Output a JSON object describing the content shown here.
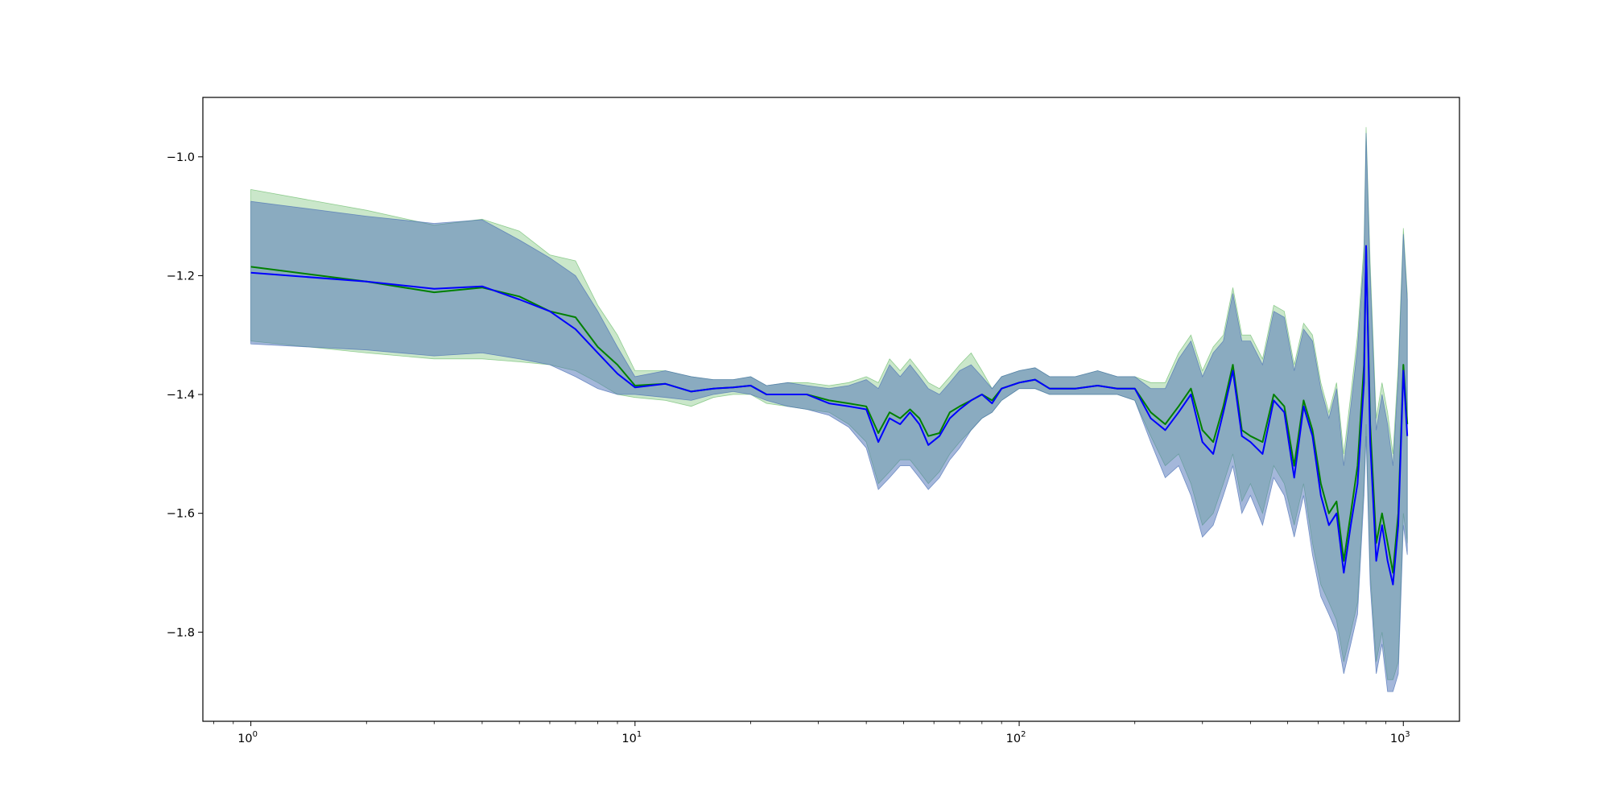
{
  "chart_data": {
    "type": "line",
    "title": "",
    "xlabel": "",
    "ylabel": "",
    "xscale": "log",
    "xlim": [
      0.75,
      1400
    ],
    "ylim": [
      -1.95,
      -0.9
    ],
    "x_ticks": [
      {
        "value": 1,
        "base": "10",
        "exp": "0"
      },
      {
        "value": 10,
        "base": "10",
        "exp": "1"
      },
      {
        "value": 100,
        "base": "10",
        "exp": "2"
      },
      {
        "value": 1000,
        "base": "10",
        "exp": "3"
      }
    ],
    "y_ticks": [
      {
        "value": -1.0,
        "label": "−1.0"
      },
      {
        "value": -1.2,
        "label": "−1.2"
      },
      {
        "value": -1.4,
        "label": "−1.4"
      },
      {
        "value": -1.6,
        "label": "−1.6"
      },
      {
        "value": -1.8,
        "label": "−1.8"
      }
    ],
    "grid": false,
    "legend": "none",
    "series": [
      {
        "color": "#008000",
        "band_color": "#2ca02c",
        "band_opacity": 0.25,
        "x": [
          1,
          2,
          3,
          4,
          5,
          6,
          7,
          8,
          9,
          10,
          12,
          14,
          16,
          18,
          20,
          22,
          25,
          28,
          32,
          36,
          40,
          43,
          46,
          49,
          52,
          55,
          58,
          62,
          66,
          70,
          75,
          80,
          85,
          90,
          100,
          110,
          120,
          140,
          160,
          180,
          200,
          220,
          240,
          260,
          280,
          300,
          320,
          340,
          360,
          380,
          400,
          430,
          460,
          490,
          520,
          550,
          580,
          610,
          640,
          670,
          700,
          730,
          760,
          790,
          800,
          820,
          850,
          880,
          910,
          940,
          970,
          1000,
          1024
        ],
        "y": [
          -1.185,
          -1.21,
          -1.228,
          -1.22,
          -1.235,
          -1.26,
          -1.27,
          -1.32,
          -1.35,
          -1.385,
          -1.382,
          -1.395,
          -1.39,
          -1.388,
          -1.385,
          -1.4,
          -1.4,
          -1.4,
          -1.41,
          -1.415,
          -1.42,
          -1.465,
          -1.43,
          -1.44,
          -1.425,
          -1.44,
          -1.47,
          -1.465,
          -1.43,
          -1.42,
          -1.41,
          -1.4,
          -1.41,
          -1.39,
          -1.38,
          -1.375,
          -1.39,
          -1.39,
          -1.385,
          -1.39,
          -1.39,
          -1.43,
          -1.45,
          -1.42,
          -1.39,
          -1.46,
          -1.48,
          -1.42,
          -1.35,
          -1.46,
          -1.47,
          -1.48,
          -1.4,
          -1.42,
          -1.52,
          -1.41,
          -1.46,
          -1.55,
          -1.6,
          -1.58,
          -1.68,
          -1.6,
          -1.52,
          -1.35,
          -1.15,
          -1.45,
          -1.65,
          -1.6,
          -1.65,
          -1.7,
          -1.6,
          -1.35,
          -1.45
        ],
        "lower": [
          -1.31,
          -1.33,
          -1.34,
          -1.34,
          -1.345,
          -1.35,
          -1.36,
          -1.38,
          -1.4,
          -1.405,
          -1.41,
          -1.42,
          -1.405,
          -1.4,
          -1.4,
          -1.415,
          -1.42,
          -1.425,
          -1.43,
          -1.45,
          -1.48,
          -1.55,
          -1.53,
          -1.51,
          -1.51,
          -1.53,
          -1.55,
          -1.53,
          -1.5,
          -1.48,
          -1.46,
          -1.44,
          -1.43,
          -1.41,
          -1.39,
          -1.39,
          -1.4,
          -1.4,
          -1.4,
          -1.4,
          -1.41,
          -1.47,
          -1.52,
          -1.5,
          -1.55,
          -1.62,
          -1.6,
          -1.55,
          -1.5,
          -1.58,
          -1.55,
          -1.6,
          -1.52,
          -1.55,
          -1.62,
          -1.55,
          -1.65,
          -1.72,
          -1.75,
          -1.78,
          -1.85,
          -1.8,
          -1.75,
          -1.55,
          -1.45,
          -1.7,
          -1.85,
          -1.8,
          -1.88,
          -1.88,
          -1.85,
          -1.6,
          -1.65
        ],
        "upper": [
          -1.055,
          -1.09,
          -1.115,
          -1.105,
          -1.125,
          -1.165,
          -1.175,
          -1.25,
          -1.3,
          -1.36,
          -1.36,
          -1.37,
          -1.375,
          -1.375,
          -1.37,
          -1.385,
          -1.38,
          -1.38,
          -1.385,
          -1.38,
          -1.37,
          -1.38,
          -1.34,
          -1.36,
          -1.34,
          -1.36,
          -1.38,
          -1.39,
          -1.37,
          -1.35,
          -1.33,
          -1.36,
          -1.39,
          -1.37,
          -1.36,
          -1.355,
          -1.37,
          -1.37,
          -1.36,
          -1.37,
          -1.37,
          -1.38,
          -1.38,
          -1.33,
          -1.3,
          -1.36,
          -1.32,
          -1.3,
          -1.22,
          -1.3,
          -1.3,
          -1.34,
          -1.25,
          -1.26,
          -1.35,
          -1.28,
          -1.3,
          -1.38,
          -1.43,
          -1.38,
          -1.5,
          -1.4,
          -1.3,
          -1.15,
          -0.95,
          -1.18,
          -1.44,
          -1.38,
          -1.43,
          -1.5,
          -1.35,
          -1.12,
          -1.23
        ]
      },
      {
        "color": "#0000ff",
        "band_color": "#4a6fb5",
        "band_opacity": 0.5,
        "x": [
          1,
          2,
          3,
          4,
          5,
          6,
          7,
          8,
          9,
          10,
          12,
          14,
          16,
          18,
          20,
          22,
          25,
          28,
          32,
          36,
          40,
          43,
          46,
          49,
          52,
          55,
          58,
          62,
          66,
          70,
          75,
          80,
          85,
          90,
          100,
          110,
          120,
          140,
          160,
          180,
          200,
          220,
          240,
          260,
          280,
          300,
          320,
          340,
          360,
          380,
          400,
          430,
          460,
          490,
          520,
          550,
          580,
          610,
          640,
          670,
          700,
          730,
          760,
          790,
          800,
          820,
          850,
          880,
          910,
          940,
          970,
          1000,
          1024
        ],
        "y": [
          -1.195,
          -1.21,
          -1.222,
          -1.218,
          -1.24,
          -1.26,
          -1.29,
          -1.33,
          -1.365,
          -1.388,
          -1.382,
          -1.395,
          -1.39,
          -1.388,
          -1.385,
          -1.4,
          -1.4,
          -1.4,
          -1.415,
          -1.42,
          -1.425,
          -1.48,
          -1.44,
          -1.45,
          -1.43,
          -1.45,
          -1.485,
          -1.47,
          -1.44,
          -1.425,
          -1.41,
          -1.4,
          -1.415,
          -1.39,
          -1.38,
          -1.375,
          -1.39,
          -1.39,
          -1.385,
          -1.39,
          -1.39,
          -1.44,
          -1.46,
          -1.43,
          -1.4,
          -1.48,
          -1.5,
          -1.43,
          -1.36,
          -1.47,
          -1.48,
          -1.5,
          -1.41,
          -1.43,
          -1.54,
          -1.42,
          -1.47,
          -1.57,
          -1.62,
          -1.6,
          -1.7,
          -1.62,
          -1.55,
          -1.38,
          -1.15,
          -1.48,
          -1.68,
          -1.62,
          -1.68,
          -1.72,
          -1.62,
          -1.36,
          -1.47
        ],
        "lower": [
          -1.315,
          -1.325,
          -1.335,
          -1.33,
          -1.34,
          -1.35,
          -1.37,
          -1.39,
          -1.4,
          -1.4,
          -1.405,
          -1.41,
          -1.4,
          -1.395,
          -1.4,
          -1.41,
          -1.42,
          -1.425,
          -1.435,
          -1.455,
          -1.49,
          -1.56,
          -1.54,
          -1.52,
          -1.52,
          -1.54,
          -1.56,
          -1.54,
          -1.51,
          -1.49,
          -1.46,
          -1.44,
          -1.43,
          -1.41,
          -1.39,
          -1.39,
          -1.4,
          -1.4,
          -1.4,
          -1.4,
          -1.41,
          -1.48,
          -1.54,
          -1.52,
          -1.57,
          -1.64,
          -1.62,
          -1.57,
          -1.52,
          -1.6,
          -1.57,
          -1.62,
          -1.54,
          -1.57,
          -1.64,
          -1.57,
          -1.67,
          -1.74,
          -1.77,
          -1.8,
          -1.87,
          -1.82,
          -1.77,
          -1.57,
          -1.47,
          -1.72,
          -1.87,
          -1.82,
          -1.9,
          -1.9,
          -1.87,
          -1.62,
          -1.67
        ],
        "upper": [
          -1.075,
          -1.1,
          -1.112,
          -1.106,
          -1.14,
          -1.17,
          -1.2,
          -1.26,
          -1.32,
          -1.37,
          -1.36,
          -1.37,
          -1.375,
          -1.375,
          -1.37,
          -1.385,
          -1.38,
          -1.385,
          -1.39,
          -1.385,
          -1.375,
          -1.39,
          -1.35,
          -1.37,
          -1.35,
          -1.37,
          -1.39,
          -1.4,
          -1.38,
          -1.36,
          -1.35,
          -1.37,
          -1.39,
          -1.37,
          -1.36,
          -1.355,
          -1.37,
          -1.37,
          -1.36,
          -1.37,
          -1.37,
          -1.39,
          -1.39,
          -1.34,
          -1.31,
          -1.37,
          -1.33,
          -1.31,
          -1.23,
          -1.31,
          -1.31,
          -1.35,
          -1.26,
          -1.27,
          -1.36,
          -1.29,
          -1.31,
          -1.39,
          -1.44,
          -1.39,
          -1.52,
          -1.42,
          -1.32,
          -1.17,
          -0.96,
          -1.2,
          -1.46,
          -1.4,
          -1.45,
          -1.52,
          -1.37,
          -1.13,
          -1.24
        ]
      }
    ]
  }
}
